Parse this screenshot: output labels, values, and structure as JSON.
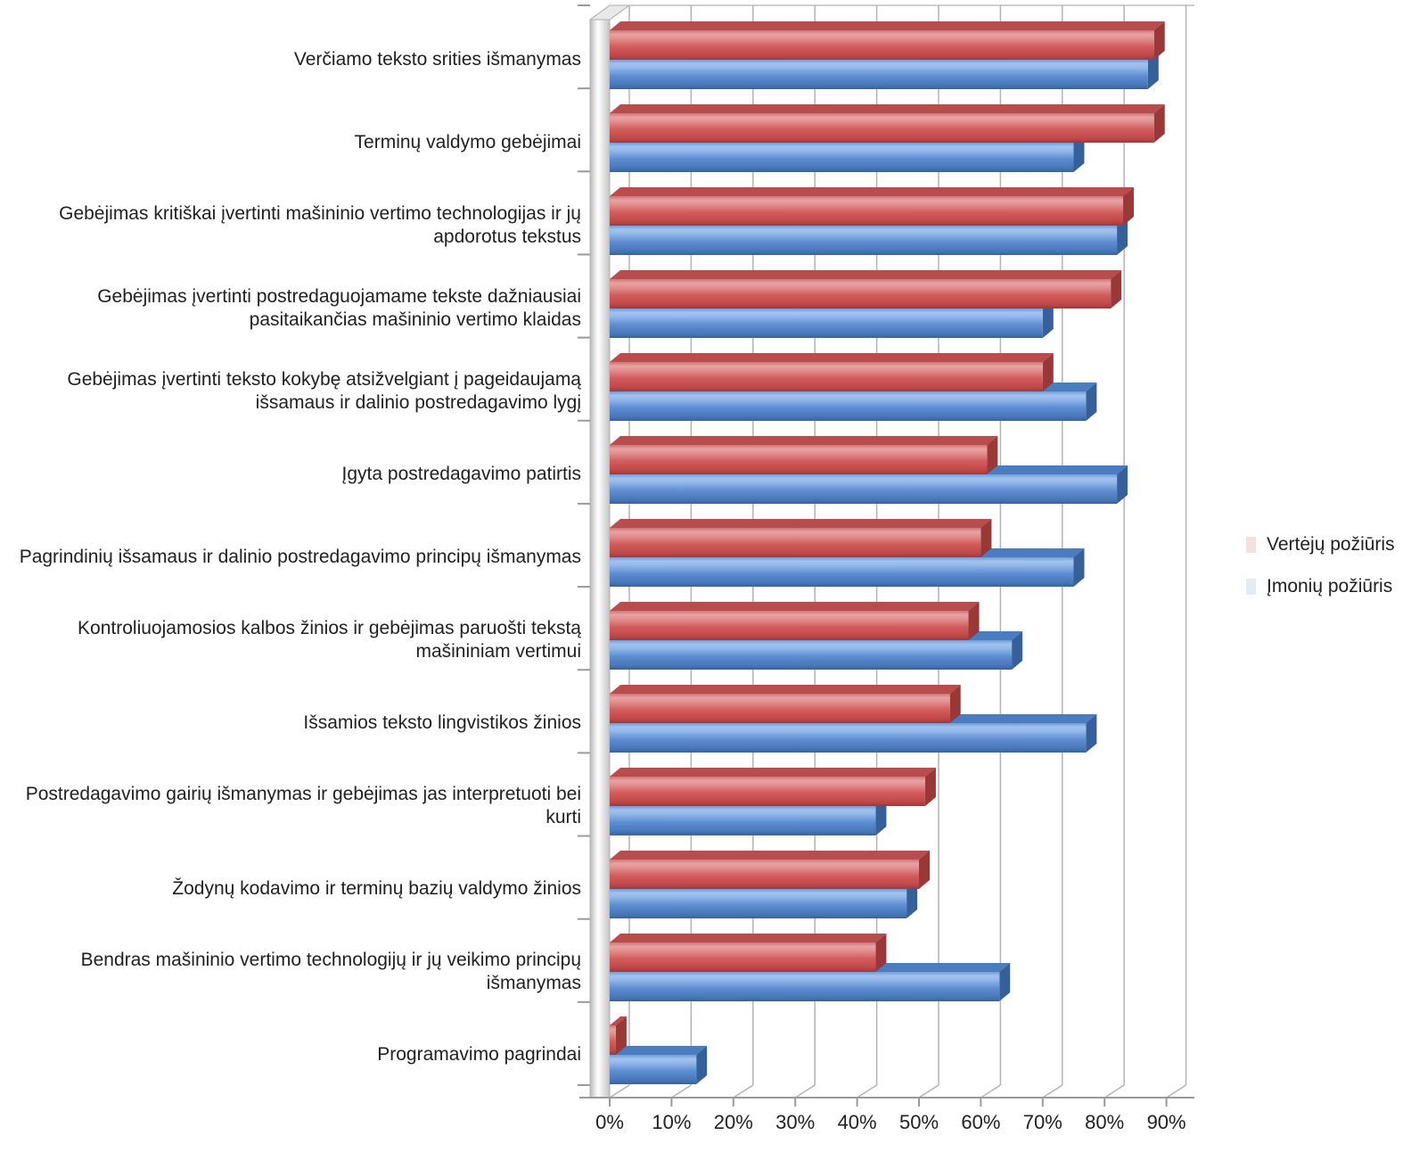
{
  "chart_data": {
    "type": "bar",
    "orientation": "horizontal",
    "style": "3d-cylinder-excel",
    "title": "",
    "xlabel": "",
    "ylabel": "",
    "grid": true,
    "legend_position": "right",
    "xlim": [
      0,
      95
    ],
    "x_ticks": [
      "0%",
      "10%",
      "20%",
      "30%",
      "40%",
      "50%",
      "60%",
      "70%",
      "80%",
      "90%"
    ],
    "categories": [
      "Verčiamo teksto srities išmanymas",
      "Terminų valdymo gebėjimai",
      "Gebėjimas kritiškai įvertinti mašininio vertimo technologijas ir jų apdorotus tekstus",
      "Gebėjimas įvertinti postredaguojamame tekste dažniausiai pasitaikančias mašininio vertimo klaidas",
      "Gebėjimas įvertinti teksto kokybę atsižvelgiant į pageidaujamą išsamaus ir dalinio postredagavimo lygį",
      "Įgyta postredagavimo patirtis",
      "Pagrindinių išsamaus ir dalinio postredagavimo principų išmanymas",
      "Kontroliuojamosios kalbos žinios ir gebėjimas paruošti tekstą mašininiam vertimui",
      "Išsamios teksto lingvistikos žinios",
      "Postredagavimo gairių išmanymas ir gebėjimas jas interpretuoti bei kurti",
      "Žodynų kodavimo ir terminų bazių valdymo žinios",
      "Bendras mašininio vertimo technologijų ir jų veikimo principų išmanymas",
      "Programavimo pagrindai"
    ],
    "series": [
      {
        "name": "Vertėjų požiūris",
        "color": "#c0504d",
        "values": [
          88,
          88,
          83,
          81,
          70,
          61,
          60,
          58,
          55,
          51,
          50,
          43,
          1
        ]
      },
      {
        "name": "Įmonių požiūris",
        "color": "#4f81bd",
        "values": [
          87,
          75,
          82,
          70,
          77,
          82,
          75,
          65,
          77,
          43,
          48,
          63,
          14
        ]
      }
    ],
    "colors": {
      "gridline": "#b3b3b3",
      "axis": "#9a9a9a",
      "legend_swatch_red": "#f3e0df",
      "legend_swatch_blue": "#e3ebf5"
    }
  }
}
